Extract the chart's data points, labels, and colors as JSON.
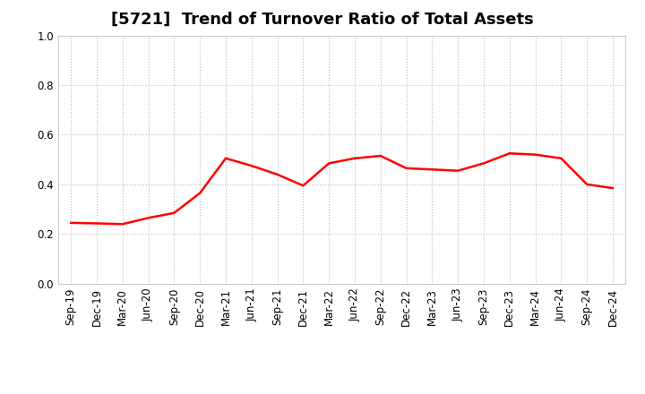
{
  "title": "[5721]  Trend of Turnover Ratio of Total Assets",
  "x_labels": [
    "Sep-19",
    "Dec-19",
    "Mar-20",
    "Jun-20",
    "Sep-20",
    "Dec-20",
    "Mar-21",
    "Jun-21",
    "Sep-21",
    "Dec-21",
    "Mar-22",
    "Jun-22",
    "Sep-22",
    "Dec-22",
    "Mar-23",
    "Jun-23",
    "Sep-23",
    "Dec-23",
    "Mar-24",
    "Jun-24",
    "Sep-24",
    "Dec-24"
  ],
  "y_values": [
    0.245,
    0.243,
    0.24,
    0.265,
    0.285,
    0.365,
    0.505,
    0.475,
    0.44,
    0.395,
    0.485,
    0.505,
    0.515,
    0.465,
    0.46,
    0.455,
    0.485,
    0.525,
    0.52,
    0.505,
    0.4,
    0.385
  ],
  "line_color": "#ff0000",
  "line_width": 1.8,
  "ylim": [
    0.0,
    1.0
  ],
  "yticks": [
    0.0,
    0.2,
    0.4,
    0.6,
    0.8,
    1.0
  ],
  "background_color": "#ffffff",
  "grid_color": "#bbbbbb",
  "title_fontsize": 13,
  "tick_fontsize": 8.5
}
